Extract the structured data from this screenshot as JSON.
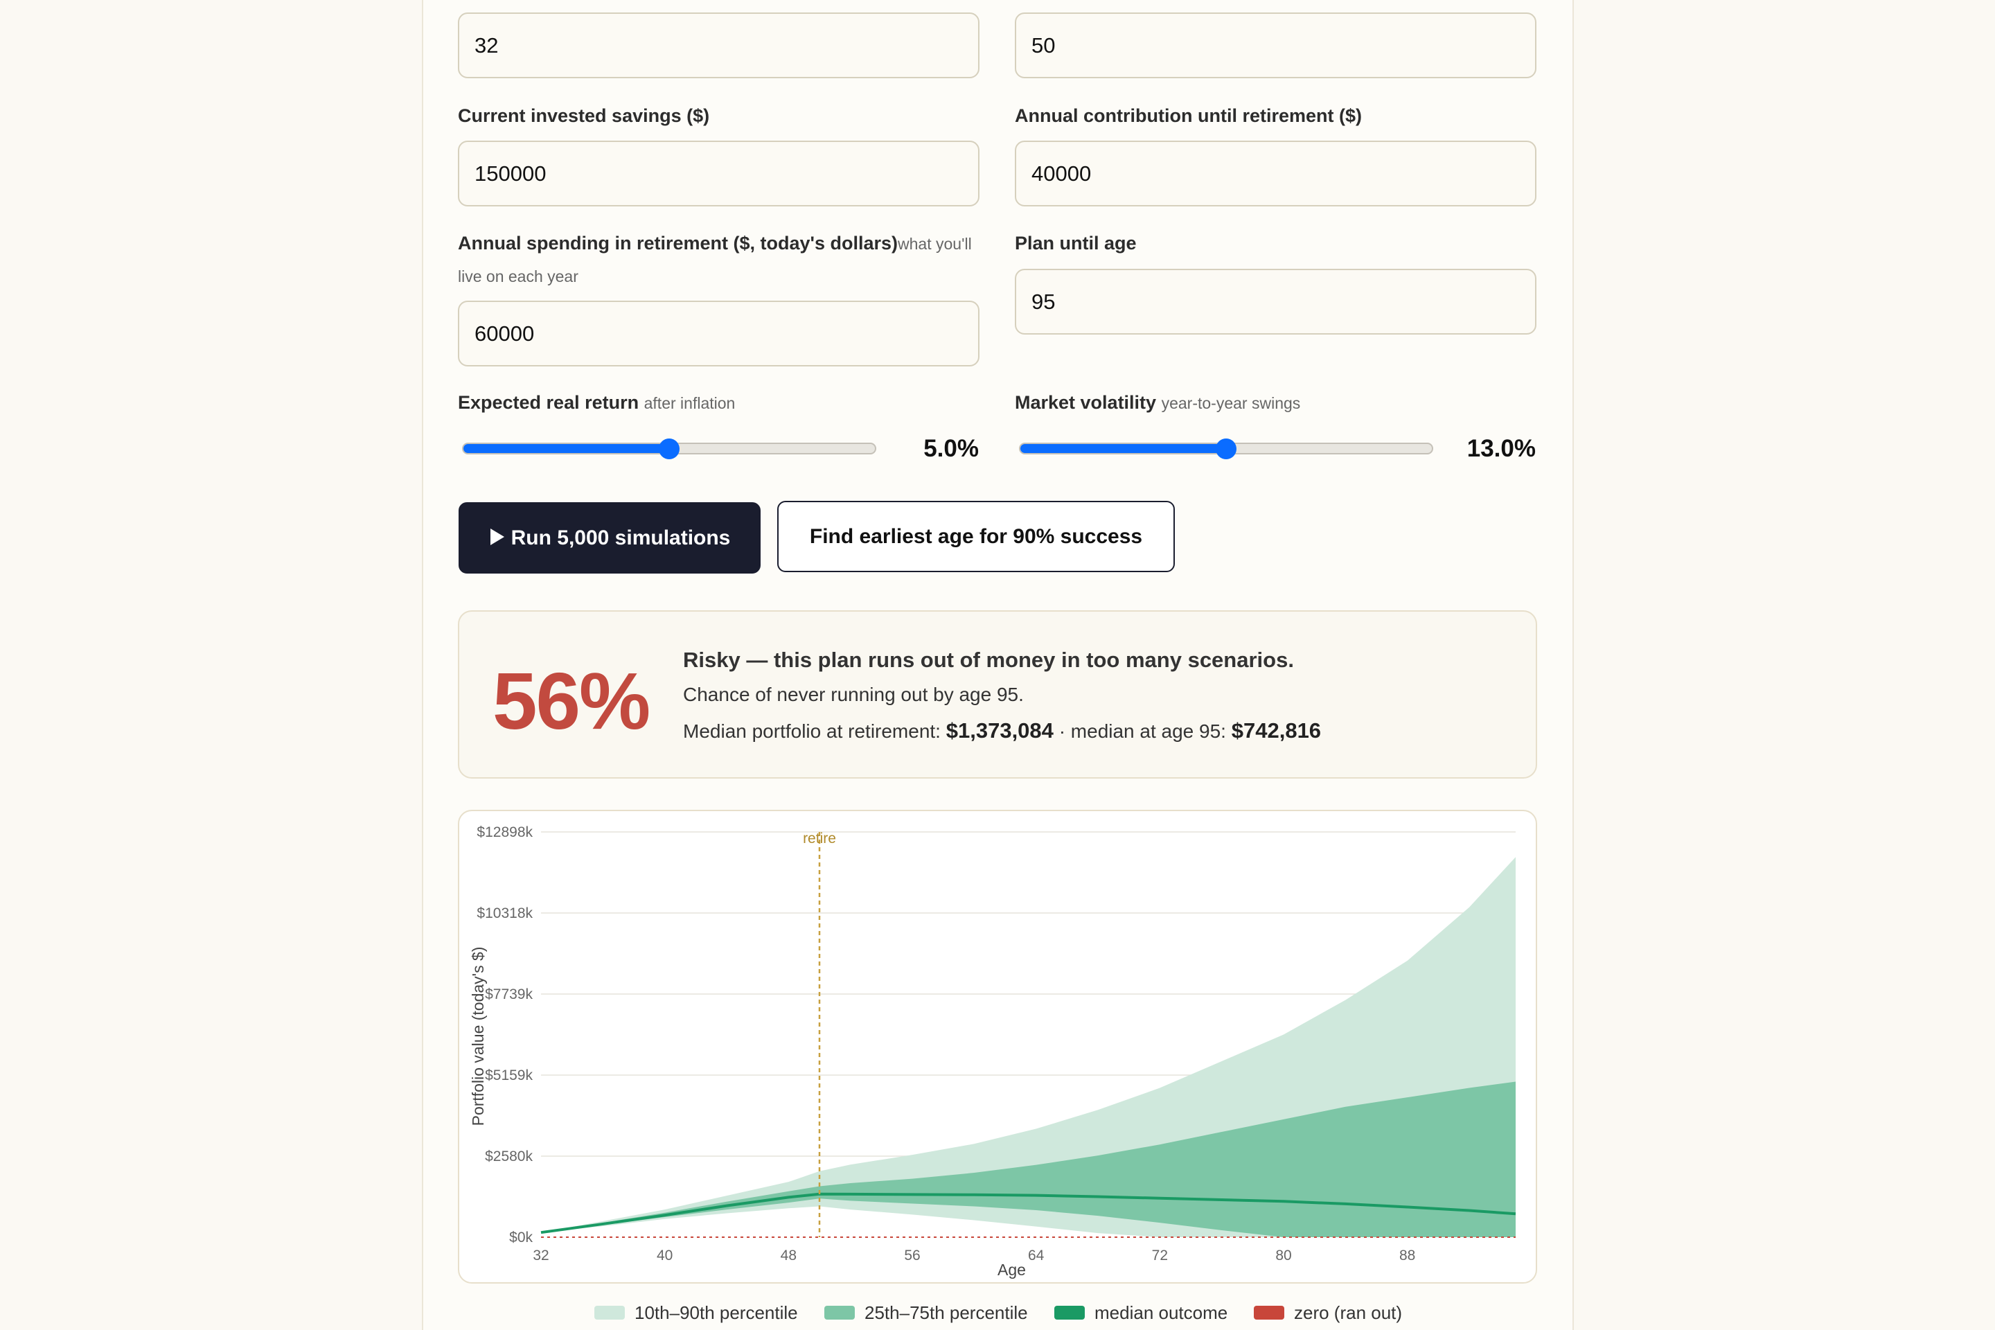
{
  "form": {
    "current_age": "32",
    "retire_age": "50",
    "savings_label": "Current invested savings ($)",
    "savings_value": "150000",
    "contribution_label": "Annual contribution until retirement ($)",
    "contribution_value": "40000",
    "spending_label": "Annual spending in retirement ($, today's dollars)",
    "spending_hint_a": "what you'll",
    "spending_hint_b": "live on each year",
    "spending_value": "60000",
    "plan_label": "Plan until age",
    "plan_value": "95",
    "return_label": "Expected real return",
    "return_hint": "after inflation",
    "return_value": "5.0%",
    "return_fraction": 0.5,
    "volatility_label": "Market volatility",
    "volatility_hint": "year-to-year swings",
    "volatility_value": "13.0%",
    "volatility_fraction": 0.5
  },
  "buttons": {
    "run": "Run 5,000 simulations",
    "run_icon": "play-icon",
    "find": "Find earliest age for 90% success"
  },
  "result": {
    "percent": "56%",
    "title": "Risky — this plan runs out of money in too many scenarios.",
    "chance": "Chance of never running out by age 95.",
    "median_retire_label": "Median portfolio at retirement:",
    "median_retire_value": "$1,373,084",
    "separator": "·",
    "median_end_label": "median at age 95:",
    "median_end_value": "$742,816",
    "color": "#c24a3f"
  },
  "chart_data": {
    "type": "area",
    "xlabel": "Age",
    "ylabel": "Portfolio value (today's $)",
    "x_ticks": [
      32,
      40,
      48,
      56,
      64,
      72,
      80,
      88
    ],
    "y_ticks": [
      "$0k",
      "$2580k",
      "$5159k",
      "$7739k",
      "$10318k",
      "$12898k"
    ],
    "xlim": [
      32,
      95
    ],
    "ylim": [
      0,
      12898
    ],
    "retire_age": 50,
    "retire_label": "retire",
    "ages": [
      32,
      36,
      40,
      44,
      48,
      50,
      52,
      56,
      60,
      64,
      68,
      72,
      76,
      80,
      84,
      88,
      92,
      95
    ],
    "p10": [
      150,
      350,
      580,
      760,
      920,
      980,
      880,
      720,
      540,
      340,
      130,
      0,
      0,
      0,
      0,
      0,
      0,
      0
    ],
    "p25": [
      150,
      390,
      640,
      880,
      1100,
      1230,
      1160,
      1070,
      980,
      860,
      680,
      460,
      220,
      0,
      0,
      0,
      0,
      0
    ],
    "p50": [
      150,
      420,
      700,
      1000,
      1270,
      1373,
      1370,
      1360,
      1350,
      1330,
      1290,
      1240,
      1190,
      1140,
      1060,
      960,
      850,
      743
    ],
    "p75": [
      150,
      460,
      780,
      1130,
      1460,
      1620,
      1720,
      1860,
      2050,
      2300,
      2600,
      2950,
      3350,
      3750,
      4150,
      4450,
      4750,
      4950
    ],
    "p90": [
      150,
      510,
      880,
      1320,
      1760,
      2100,
      2310,
      2620,
      2970,
      3450,
      4050,
      4750,
      5600,
      6450,
      7550,
      8800,
      10500,
      12100
    ],
    "legend": [
      "10th–90th percentile",
      "25th–75th percentile",
      "median outcome",
      "zero (ran out)"
    ],
    "colors": {
      "p10_90": "#cfe8dc",
      "p25_75": "#7dc6a6",
      "median": "#1a9a64",
      "zero": "#c8463a",
      "retire": "#c8a040"
    }
  }
}
